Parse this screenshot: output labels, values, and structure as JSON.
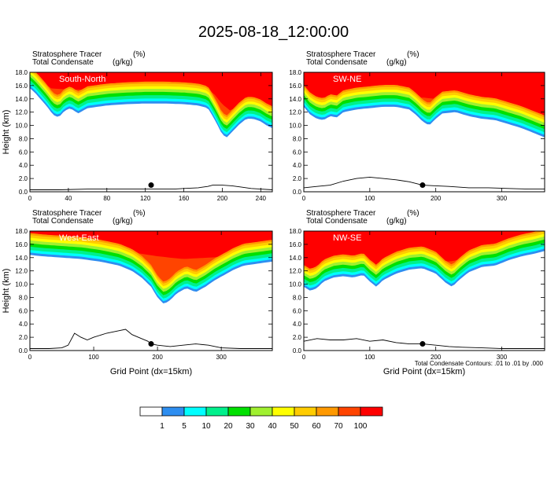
{
  "figure": {
    "title": "2025-08-18_12:00:00",
    "contour_note": "Total Condensate Contours: .01 to .01 by .000"
  },
  "colorbar": {
    "labels": [
      "1",
      "5",
      "10",
      "20",
      "30",
      "40",
      "50",
      "60",
      "70",
      "100"
    ],
    "colors": [
      "#ffffff",
      "#2e8ef0",
      "#00ffff",
      "#00f08c",
      "#00e000",
      "#a0f030",
      "#ffff00",
      "#ffcc00",
      "#ff9900",
      "#ff4400",
      "#ff0000"
    ]
  },
  "chart_data": [
    {
      "type": "heatmap",
      "panel_title": "South-North",
      "field1": "Stratosphere Tracer",
      "field1_units": "(%)",
      "field2": "Total Condensate",
      "field2_units": "(g/kg)",
      "ylabel": "Height (km)",
      "xlabel": "",
      "xlim": [
        0,
        252
      ],
      "ylim": [
        0,
        18
      ],
      "xticks": [
        "0",
        "40",
        "80",
        "120",
        "160",
        "200",
        "240"
      ],
      "xtick_values": [
        0,
        40,
        80,
        120,
        160,
        200,
        240
      ],
      "yticks": [
        "0.0",
        "2.0",
        "4.0",
        "6.0",
        "8.0",
        "10.0",
        "12.0",
        "14.0",
        "16.0",
        "18.0"
      ],
      "marker_point": [
        126,
        1.0
      ],
      "contour_note": "",
      "tracer_base_km": [
        [
          0,
          15.6
        ],
        [
          6,
          14.8
        ],
        [
          12,
          13.8
        ],
        [
          18,
          12.8
        ],
        [
          24,
          11.6
        ],
        [
          30,
          11.2
        ],
        [
          36,
          12.2
        ],
        [
          42,
          12.6
        ],
        [
          50,
          11.8
        ],
        [
          60,
          12.6
        ],
        [
          70,
          12.8
        ],
        [
          80,
          13.0
        ],
        [
          100,
          13.2
        ],
        [
          120,
          13.3
        ],
        [
          140,
          13.3
        ],
        [
          160,
          13.2
        ],
        [
          175,
          13.0
        ],
        [
          185,
          12.6
        ],
        [
          190,
          11.4
        ],
        [
          196,
          9.8
        ],
        [
          200,
          8.6
        ],
        [
          205,
          8.2
        ],
        [
          210,
          9.0
        ],
        [
          218,
          10.2
        ],
        [
          225,
          11.0
        ],
        [
          232,
          11.0
        ],
        [
          240,
          10.6
        ],
        [
          246,
          10.0
        ],
        [
          252,
          9.6
        ]
      ],
      "red_base_km": [
        [
          0,
          16.4
        ],
        [
          20,
          15.6
        ],
        [
          40,
          15.4
        ],
        [
          80,
          15.4
        ],
        [
          120,
          15.5
        ],
        [
          160,
          15.4
        ],
        [
          190,
          15.0
        ],
        [
          200,
          13.2
        ],
        [
          210,
          12.0
        ],
        [
          225,
          11.8
        ],
        [
          240,
          11.6
        ],
        [
          252,
          11.4
        ]
      ],
      "terrain_km": [
        [
          0,
          0.3
        ],
        [
          10,
          0.3
        ],
        [
          30,
          0.3
        ],
        [
          60,
          0.4
        ],
        [
          90,
          0.4
        ],
        [
          120,
          0.4
        ],
        [
          150,
          0.4
        ],
        [
          160,
          0.5
        ],
        [
          175,
          0.6
        ],
        [
          185,
          0.8
        ],
        [
          190,
          1.0
        ],
        [
          200,
          1.0
        ],
        [
          210,
          0.9
        ],
        [
          220,
          0.7
        ],
        [
          230,
          0.5
        ],
        [
          240,
          0.4
        ],
        [
          252,
          0.3
        ]
      ]
    },
    {
      "type": "heatmap",
      "panel_title": "SW-NE",
      "field1": "Stratosphere Tracer",
      "field1_units": "(%)",
      "field2": "Total Condensate",
      "field2_units": "(g/kg)",
      "ylabel": "",
      "xlabel": "",
      "xlim": [
        0,
        365
      ],
      "ylim": [
        0,
        18
      ],
      "xticks": [
        "0",
        "100",
        "200",
        "300"
      ],
      "xtick_values": [
        0,
        100,
        200,
        300
      ],
      "yticks": [
        "0.0",
        "2.0",
        "4.0",
        "6.0",
        "8.0",
        "10.0",
        "12.0",
        "14.0",
        "16.0",
        "18.0"
      ],
      "marker_point": [
        180,
        1.0
      ],
      "contour_note": "",
      "tracer_base_km": [
        [
          0,
          12.8
        ],
        [
          10,
          11.6
        ],
        [
          20,
          11.0
        ],
        [
          30,
          10.8
        ],
        [
          40,
          11.4
        ],
        [
          50,
          11.2
        ],
        [
          60,
          12.0
        ],
        [
          80,
          12.4
        ],
        [
          100,
          12.6
        ],
        [
          120,
          12.8
        ],
        [
          140,
          12.8
        ],
        [
          160,
          12.4
        ],
        [
          170,
          11.6
        ],
        [
          180,
          10.6
        ],
        [
          190,
          10.0
        ],
        [
          200,
          11.0
        ],
        [
          210,
          11.8
        ],
        [
          230,
          12.0
        ],
        [
          250,
          11.4
        ],
        [
          270,
          11.0
        ],
        [
          290,
          10.8
        ],
        [
          310,
          10.2
        ],
        [
          330,
          9.6
        ],
        [
          350,
          8.8
        ],
        [
          365,
          8.2
        ]
      ],
      "red_base_km": [
        [
          0,
          14.0
        ],
        [
          30,
          13.8
        ],
        [
          80,
          14.0
        ],
        [
          130,
          14.2
        ],
        [
          180,
          14.2
        ],
        [
          220,
          13.8
        ],
        [
          260,
          13.2
        ],
        [
          300,
          12.2
        ],
        [
          330,
          11.0
        ],
        [
          350,
          9.8
        ],
        [
          365,
          9.0
        ]
      ],
      "terrain_km": [
        [
          0,
          0.6
        ],
        [
          20,
          0.8
        ],
        [
          40,
          1.0
        ],
        [
          60,
          1.6
        ],
        [
          80,
          2.0
        ],
        [
          100,
          2.2
        ],
        [
          120,
          2.0
        ],
        [
          140,
          1.8
        ],
        [
          160,
          1.5
        ],
        [
          180,
          1.0
        ],
        [
          200,
          0.9
        ],
        [
          220,
          0.8
        ],
        [
          250,
          0.6
        ],
        [
          280,
          0.6
        ],
        [
          310,
          0.5
        ],
        [
          340,
          0.4
        ],
        [
          365,
          0.4
        ]
      ]
    },
    {
      "type": "heatmap",
      "panel_title": "West-East",
      "field1": "Stratosphere Tracer",
      "field1_units": "(%)",
      "field2": "Total Condensate",
      "field2_units": "(g/kg)",
      "ylabel": "Height (km)",
      "xlabel": "Grid Point (dx=15km)",
      "xlim": [
        0,
        380
      ],
      "ylim": [
        0,
        18
      ],
      "xticks": [
        "0",
        "100",
        "200",
        "300"
      ],
      "xtick_values": [
        0,
        100,
        200,
        300
      ],
      "yticks": [
        "0.0",
        "2.0",
        "4.0",
        "6.0",
        "8.0",
        "10.0",
        "12.0",
        "14.0",
        "16.0",
        "18.0"
      ],
      "marker_point": [
        190,
        1.0
      ],
      "contour_note": "",
      "tracer_base_km": [
        [
          0,
          14.4
        ],
        [
          20,
          14.2
        ],
        [
          50,
          14.0
        ],
        [
          80,
          13.8
        ],
        [
          110,
          13.4
        ],
        [
          140,
          12.8
        ],
        [
          160,
          12.0
        ],
        [
          175,
          11.0
        ],
        [
          190,
          9.6
        ],
        [
          200,
          8.0
        ],
        [
          210,
          7.0
        ],
        [
          220,
          7.6
        ],
        [
          230,
          8.6
        ],
        [
          245,
          9.4
        ],
        [
          260,
          8.8
        ],
        [
          275,
          9.6
        ],
        [
          290,
          10.6
        ],
        [
          305,
          11.4
        ],
        [
          320,
          12.2
        ],
        [
          335,
          12.8
        ],
        [
          350,
          13.0
        ],
        [
          365,
          13.2
        ],
        [
          380,
          13.4
        ]
      ],
      "red_base_km": [
        [
          0,
          15.6
        ],
        [
          40,
          15.4
        ],
        [
          80,
          15.2
        ],
        [
          120,
          15.0
        ],
        [
          160,
          14.8
        ],
        [
          200,
          14.2
        ],
        [
          240,
          13.8
        ],
        [
          280,
          14.0
        ],
        [
          320,
          14.2
        ],
        [
          350,
          14.6
        ],
        [
          380,
          15.0
        ]
      ],
      "terrain_km": [
        [
          0,
          0.3
        ],
        [
          30,
          0.3
        ],
        [
          50,
          0.4
        ],
        [
          60,
          0.8
        ],
        [
          70,
          2.6
        ],
        [
          80,
          2.0
        ],
        [
          90,
          1.6
        ],
        [
          100,
          2.0
        ],
        [
          120,
          2.6
        ],
        [
          140,
          3.0
        ],
        [
          150,
          3.2
        ],
        [
          160,
          2.4
        ],
        [
          175,
          1.8
        ],
        [
          185,
          1.4
        ],
        [
          190,
          1.0
        ],
        [
          200,
          0.8
        ],
        [
          220,
          0.6
        ],
        [
          240,
          0.8
        ],
        [
          260,
          1.0
        ],
        [
          280,
          0.8
        ],
        [
          300,
          0.4
        ],
        [
          330,
          0.3
        ],
        [
          380,
          0.3
        ]
      ]
    },
    {
      "type": "heatmap",
      "panel_title": "NW-SE",
      "field1": "Stratosphere Tracer",
      "field1_units": "(%)",
      "field2": "Total Condensate",
      "field2_units": "(g/kg)",
      "ylabel": "",
      "xlabel": "Grid Point (dx=15km)",
      "xlim": [
        0,
        365
      ],
      "ylim": [
        0,
        18
      ],
      "xticks": [
        "0",
        "100",
        "200",
        "300"
      ],
      "xtick_values": [
        0,
        100,
        200,
        300
      ],
      "yticks": [
        "0.0",
        "2.0",
        "4.0",
        "6.0",
        "8.0",
        "10.0",
        "12.0",
        "14.0",
        "16.0",
        "18.0"
      ],
      "marker_point": [
        180,
        1.0
      ],
      "contour_note": "Total Condensate Contours: .01 to .01 by .000",
      "tracer_base_km": [
        [
          0,
          9.6
        ],
        [
          10,
          9.0
        ],
        [
          20,
          9.4
        ],
        [
          30,
          10.4
        ],
        [
          45,
          11.0
        ],
        [
          60,
          11.2
        ],
        [
          75,
          11.0
        ],
        [
          90,
          11.4
        ],
        [
          100,
          10.4
        ],
        [
          110,
          9.6
        ],
        [
          120,
          10.6
        ],
        [
          140,
          11.6
        ],
        [
          160,
          12.2
        ],
        [
          180,
          12.4
        ],
        [
          200,
          11.6
        ],
        [
          215,
          10.2
        ],
        [
          225,
          9.6
        ],
        [
          235,
          10.6
        ],
        [
          250,
          11.8
        ],
        [
          270,
          12.6
        ],
        [
          290,
          12.8
        ],
        [
          310,
          13.6
        ],
        [
          330,
          14.2
        ],
        [
          350,
          14.6
        ],
        [
          365,
          15.0
        ]
      ],
      "red_base_km": [
        [
          0,
          11.4
        ],
        [
          30,
          12.2
        ],
        [
          60,
          12.8
        ],
        [
          90,
          13.0
        ],
        [
          110,
          12.6
        ],
        [
          140,
          13.2
        ],
        [
          180,
          13.6
        ],
        [
          220,
          13.4
        ],
        [
          260,
          14.0
        ],
        [
          300,
          14.6
        ],
        [
          340,
          15.2
        ],
        [
          365,
          15.6
        ]
      ],
      "terrain_km": [
        [
          0,
          1.4
        ],
        [
          20,
          1.8
        ],
        [
          40,
          1.6
        ],
        [
          60,
          1.6
        ],
        [
          80,
          1.8
        ],
        [
          100,
          1.4
        ],
        [
          120,
          1.6
        ],
        [
          140,
          1.2
        ],
        [
          160,
          1.0
        ],
        [
          180,
          1.0
        ],
        [
          200,
          0.8
        ],
        [
          220,
          0.6
        ],
        [
          240,
          0.5
        ],
        [
          270,
          0.4
        ],
        [
          300,
          0.3
        ],
        [
          340,
          0.3
        ],
        [
          365,
          0.3
        ]
      ]
    }
  ]
}
